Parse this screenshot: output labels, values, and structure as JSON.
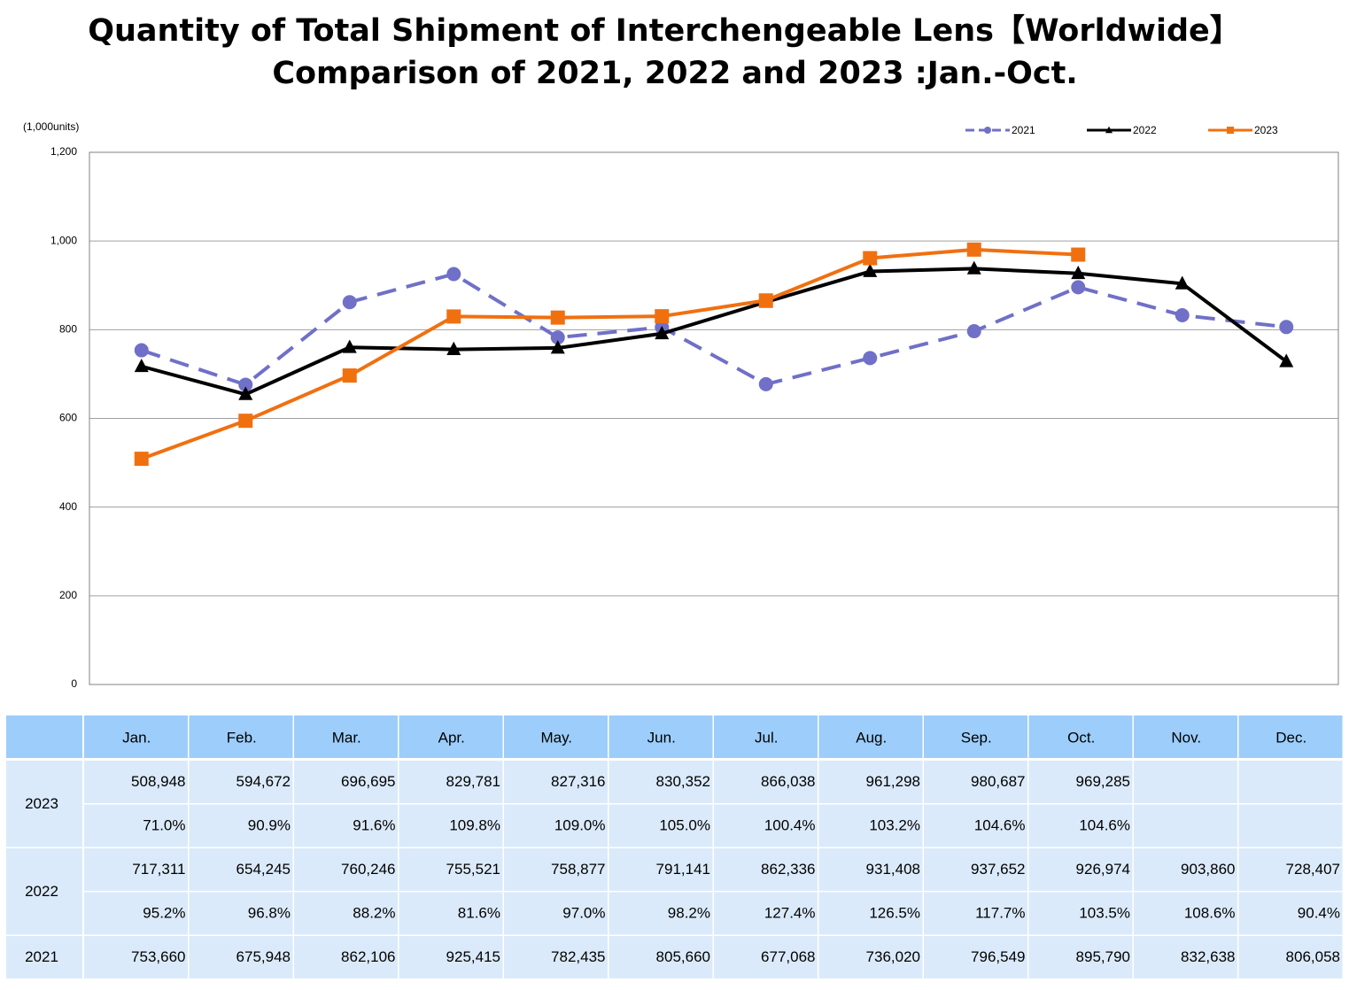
{
  "chart_data": {
    "type": "line",
    "title": "Quantity of Total Shipment of Interchengeable Lens【Worldwide】",
    "subtitle": "Comparison of 2021, 2022 and 2023 :Jan.-Oct.",
    "y_unit": "(1,000units)",
    "categories": [
      "Jan.",
      "Feb.",
      "Mar.",
      "Apr.",
      "May.",
      "Jun.",
      "Jul.",
      "Aug.",
      "Sep.",
      "Oct.",
      "Nov.",
      "Dec."
    ],
    "ylim": [
      0,
      1200
    ],
    "yticks": [
      0,
      200,
      400,
      600,
      800,
      {
        "value": 1000,
        "label": "1,000"
      },
      {
        "value": 1200,
        "label": "1,200"
      }
    ],
    "grid": true,
    "legend": "top-right",
    "series": [
      {
        "name": "2021",
        "color": "#7070c8",
        "line_style": "dashed",
        "marker": "circle",
        "values": [
          753.66,
          675.948,
          862.106,
          925.415,
          782.435,
          805.66,
          677.068,
          736.02,
          796.549,
          895.79,
          832.638,
          806.058
        ],
        "value_labels": [
          "753,660",
          "675,948",
          "862,106",
          "925,415",
          "782,435",
          "805,660",
          "677,068",
          "736,020",
          "796,549",
          "895,790",
          "832,638",
          "806,058"
        ]
      },
      {
        "name": "2022",
        "color": "#000000",
        "line_style": "solid",
        "marker": "triangle",
        "values": [
          717.311,
          654.245,
          760.246,
          755.521,
          758.877,
          791.141,
          862.336,
          931.408,
          937.652,
          926.974,
          903.86,
          728.407
        ],
        "value_labels": [
          "717,311",
          "654,245",
          "760,246",
          "755,521",
          "758,877",
          "791,141",
          "862,336",
          "931,408",
          "937,652",
          "926,974",
          "903,860",
          "728,407"
        ],
        "yoy_labels": [
          "95.2%",
          "96.8%",
          "88.2%",
          "81.6%",
          "97.0%",
          "98.2%",
          "127.4%",
          "126.5%",
          "117.7%",
          "103.5%",
          "108.6%",
          "90.4%"
        ]
      },
      {
        "name": "2023",
        "color": "#f07010",
        "line_style": "solid",
        "marker": "square",
        "values": [
          508.948,
          594.672,
          696.695,
          829.781,
          827.316,
          830.352,
          866.038,
          961.298,
          980.687,
          969.285,
          null,
          null
        ],
        "value_labels": [
          "508,948",
          "594,672",
          "696,695",
          "829,781",
          "827,316",
          "830,352",
          "866,038",
          "961,298",
          "980,687",
          "969,285",
          null,
          null
        ],
        "yoy_labels": [
          "71.0%",
          "90.9%",
          "91.6%",
          "109.8%",
          "109.0%",
          "105.0%",
          "100.4%",
          "103.2%",
          "104.6%",
          "104.6%",
          null,
          null
        ]
      }
    ]
  }
}
